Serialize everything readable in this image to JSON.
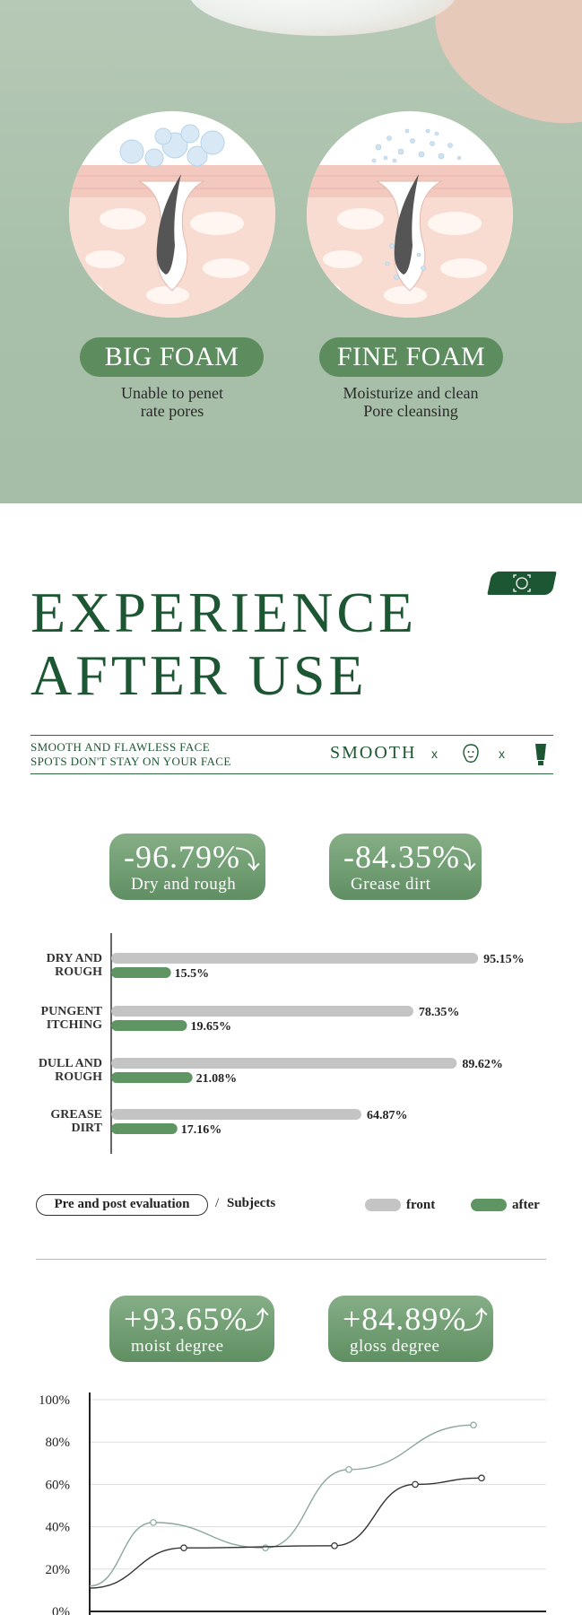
{
  "hero": {
    "foam_types": [
      {
        "label": "BIG FOAM",
        "caption_line1": "Unable to penet",
        "caption_line2": "rate pores"
      },
      {
        "label": "FINE FOAM",
        "caption_line1": "Moisturize and clean",
        "caption_line2": "Pore cleansing"
      }
    ]
  },
  "experience": {
    "title_line1": "EXPERIENCE",
    "title_line2": "AFTER USE",
    "subtitle_line1": "SMOOTH AND FLAWLESS FACE",
    "subtitle_line2": "SPOTS DON'T STAY ON YOUR FACE",
    "smooth_label": "SMOOTH",
    "x_label": "x"
  },
  "stats_decrease": [
    {
      "value": "-96.79%",
      "label": "Dry and rough"
    },
    {
      "value": "-84.35%",
      "label": "Grease dirt"
    }
  ],
  "stats_increase": [
    {
      "value": "+93.65%",
      "label": "moist degree"
    },
    {
      "value": "+84.89%",
      "label": "gloss degree"
    }
  ],
  "legend": {
    "box_label": "Pre and post evaluation",
    "separator": "/",
    "subjects": "Subjects",
    "front": "front",
    "after": "after"
  },
  "colors": {
    "brand_green": "#1d5632",
    "bar_green": "#5f9463",
    "bar_gray": "#c4c4c4",
    "line_light": "#8aa8a0",
    "line_dark": "#333333"
  },
  "chart_data": [
    {
      "type": "bar",
      "orientation": "horizontal",
      "categories": [
        [
          "DRY AND",
          "ROUGH"
        ],
        [
          "PUNGENT",
          "ITCHING"
        ],
        [
          "DULL AND",
          "ROUGH"
        ],
        [
          "GREASE",
          "DIRT"
        ]
      ],
      "series": [
        {
          "name": "front",
          "values": [
            95.15,
            78.35,
            89.62,
            64.87
          ],
          "labels": [
            "95.15%",
            "78.35%",
            "89.62%",
            "64.87%"
          ]
        },
        {
          "name": "after",
          "values": [
            15.5,
            19.65,
            21.08,
            17.16
          ],
          "labels": [
            "15.5%",
            "19.65%",
            "21.08%",
            "17.16%"
          ]
        }
      ],
      "xlim": [
        0,
        100
      ]
    },
    {
      "type": "line",
      "ylim": [
        0,
        100
      ],
      "yticks": [
        "0%",
        "20%",
        "40%",
        "60%",
        "80%",
        "100%"
      ],
      "grid": true,
      "series": [
        {
          "values": [
            42,
            30,
            67,
            88
          ]
        },
        {
          "values": [
            30,
            31,
            60,
            63
          ]
        }
      ]
    }
  ]
}
